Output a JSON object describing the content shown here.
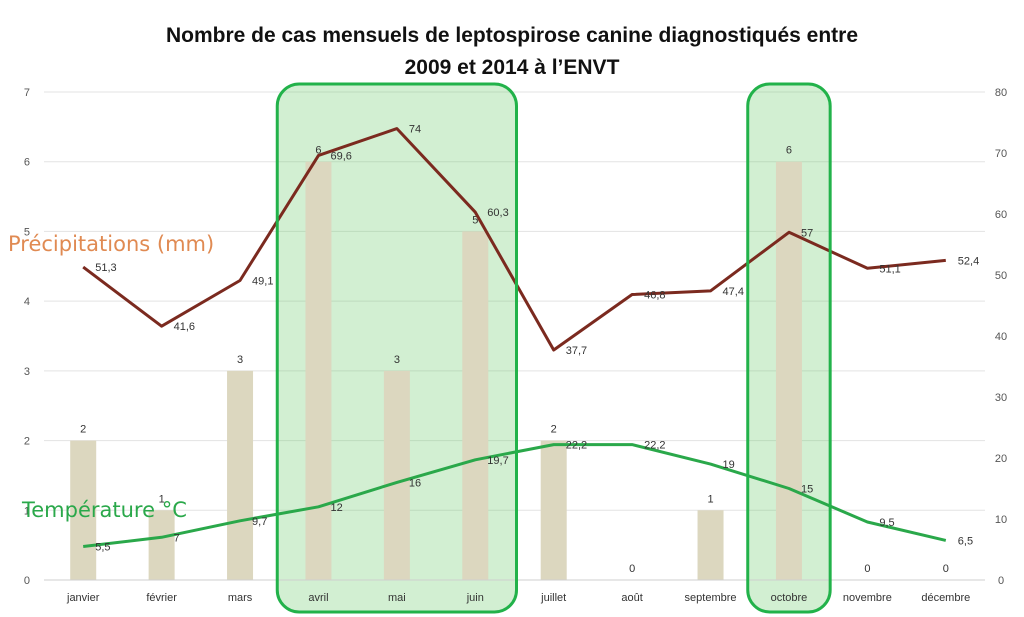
{
  "chart_data": {
    "type": "bar",
    "title_line1": "Nombre de cas mensuels de leptospirose canine diagnostiqués entre",
    "title_line2": "2009 et 2014 à l’ENVT",
    "categories": [
      "janvier",
      "février",
      "mars",
      "avril",
      "mai",
      "juin",
      "juillet",
      "août",
      "septembre",
      "octobre",
      "novembre",
      "décembre"
    ],
    "left_axis": {
      "ylim": [
        0,
        7
      ],
      "ticks": [
        0,
        1,
        2,
        3,
        4,
        5,
        6,
        7
      ]
    },
    "right_axis": {
      "ylim": [
        0,
        80
      ],
      "ticks": [
        0,
        10,
        20,
        30,
        40,
        50,
        60,
        70,
        80
      ]
    },
    "grid": true,
    "series": [
      {
        "type": "bar",
        "axis": "left",
        "values": [
          2,
          1,
          3,
          6,
          3,
          5,
          2,
          0,
          1,
          6,
          0,
          0
        ],
        "labels": [
          "2",
          "1",
          "3",
          "6",
          "3",
          "5",
          "2",
          "0",
          "1",
          "6",
          "0",
          "0"
        ],
        "color": "#dcd7bf"
      },
      {
        "type": "line",
        "axis": "right",
        "name": "Précipitations (mm)",
        "values": [
          51.3,
          41.6,
          49.1,
          69.6,
          74,
          60.3,
          37.7,
          46.8,
          47.4,
          57,
          51.1,
          52.4
        ],
        "labels": [
          "51,3",
          "41,6",
          "49,1",
          "69,6",
          "74",
          "60,3",
          "37,7",
          "46,8",
          "47,4",
          "57",
          "51,1",
          "52,4"
        ],
        "color": "#7b2a1f"
      },
      {
        "type": "line",
        "axis": "right",
        "name": "Température °C",
        "values": [
          5.5,
          7,
          9.7,
          12,
          16,
          19.7,
          22.2,
          22.2,
          19,
          15,
          9.5,
          6.5
        ],
        "labels": [
          "5,5",
          "7",
          "9,7",
          "12",
          "16",
          "19,7",
          "22,2",
          "22,2",
          "19",
          "15",
          "9,5",
          "6,5"
        ],
        "color": "#2aa84a"
      }
    ],
    "highlights": [
      {
        "from": "avril",
        "to": "juin",
        "color": "#5cc55c"
      },
      {
        "from": "octobre",
        "to": "octobre",
        "color": "#5cc55c"
      }
    ]
  }
}
